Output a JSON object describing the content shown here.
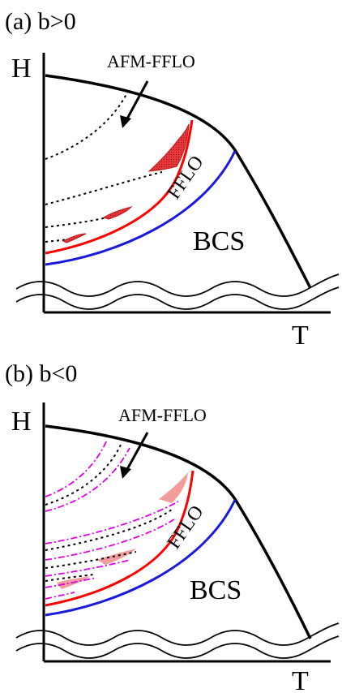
{
  "panels": [
    {
      "id": "a",
      "panel_label": "(a) b>0",
      "axis_y": "H",
      "axis_x": "T",
      "phase_afm_fflo": "AFM-FFLO",
      "phase_fflo": "FFLO",
      "phase_bcs": "BCS",
      "dash_style": "black-dotted-only"
    },
    {
      "id": "b",
      "panel_label": "(b) b<0",
      "axis_y": "H",
      "axis_x": "T",
      "phase_afm_fflo": "AFM-FFLO",
      "phase_fflo": "FFLO",
      "phase_bcs": "BCS",
      "dash_style": "black-dotted-and-magenta-dashdot"
    }
  ],
  "colors": {
    "outer_boundary": "#000000",
    "first_order_line": "#ff0000",
    "fflo_bcs_line": "#1a1adc",
    "red_shading": "#e8383c",
    "pink_shading": "#f28a8a",
    "dotted": "#000000",
    "dashdot": "#e000e0"
  }
}
